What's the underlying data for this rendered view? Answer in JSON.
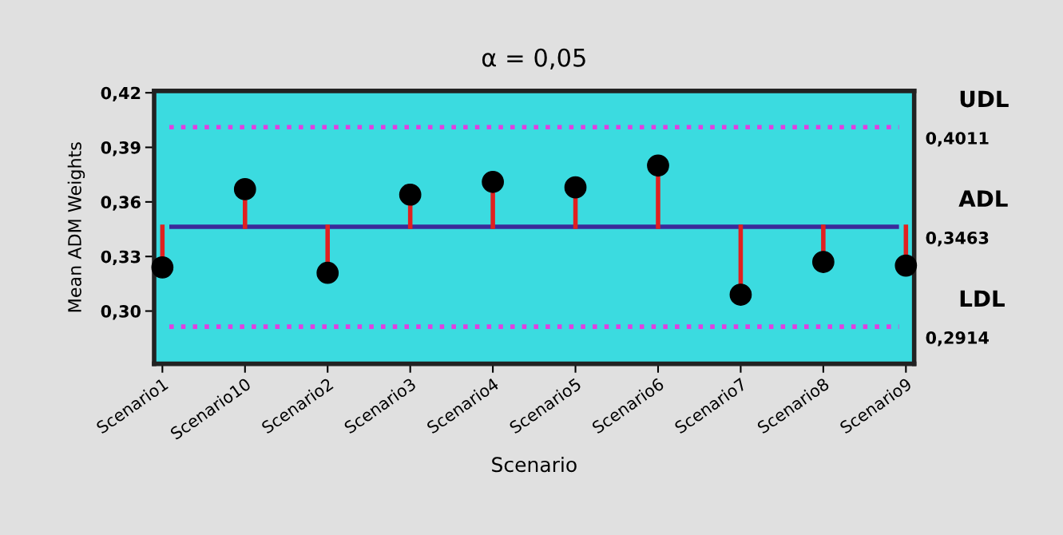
{
  "chart_data": {
    "type": "lollipop",
    "title": "α = 0,05",
    "xlabel": "Scenario",
    "ylabel": "Mean ADM Weights",
    "categories": [
      "Scenario1",
      "Scenario10",
      "Scenario2",
      "Scenario3",
      "Scenario4",
      "Scenario5",
      "Scenario6",
      "Scenario7",
      "Scenario8",
      "Scenario9"
    ],
    "series": [
      {
        "color": "#000000",
        "values": [
          0.324,
          0.367,
          0.321,
          0.364,
          0.371,
          0.368,
          0.38,
          0.309,
          0.327,
          0.325
        ]
      }
    ],
    "marker": "circle",
    "ylim": [
      0.271,
      0.421
    ],
    "yticks": [
      {
        "value": 0.3,
        "label": "0,30"
      },
      {
        "value": 0.33,
        "label": "0,33"
      },
      {
        "value": 0.36,
        "label": "0,36"
      },
      {
        "value": 0.39,
        "label": "0,39"
      },
      {
        "value": 0.42,
        "label": "0,42"
      }
    ],
    "ref_lines": [
      {
        "axis": "y",
        "value": 0.4011,
        "label": "UDL\n0,4011",
        "color": "#e040e0",
        "line_style": "dotted"
      },
      {
        "axis": "y",
        "value": 0.3463,
        "label": "ADL\n0,3463",
        "color": "#3b2a9a",
        "line_style": "solid"
      },
      {
        "axis": "y",
        "value": 0.2914,
        "label": "LDL\n0,2914",
        "color": "#e040e0",
        "line_style": "dotted"
      }
    ],
    "grid": false,
    "legend": false
  }
}
